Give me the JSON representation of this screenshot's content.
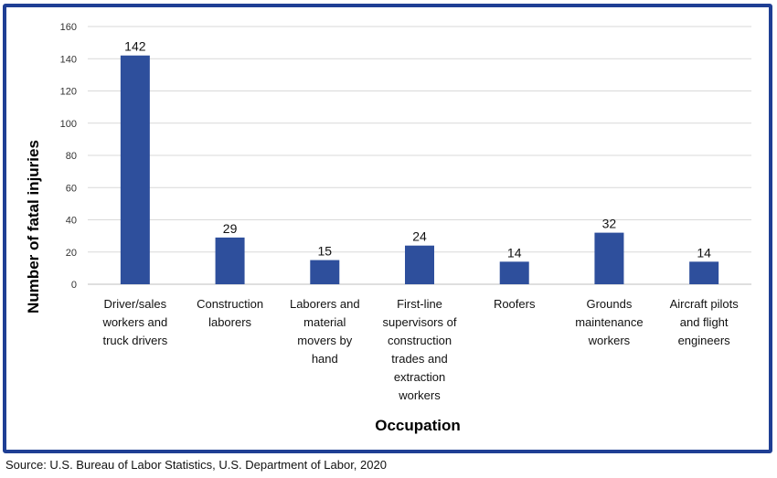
{
  "chart_data": {
    "type": "bar",
    "categories": [
      [
        "Driver/sales",
        "workers and",
        "truck drivers"
      ],
      [
        "Construction",
        "laborers"
      ],
      [
        "Laborers and",
        "material",
        "movers by",
        "hand"
      ],
      [
        "First-line",
        "supervisors of",
        "construction",
        "trades and",
        "extraction",
        "workers"
      ],
      [
        "Roofers"
      ],
      [
        "Grounds",
        "maintenance",
        "workers"
      ],
      [
        "Aircraft pilots",
        "and flight",
        "engineers"
      ]
    ],
    "values": [
      142,
      29,
      15,
      24,
      14,
      32,
      14
    ],
    "data_labels": [
      "142",
      "29",
      "15",
      "24",
      "14",
      "32",
      "14"
    ],
    "xlabel": "Occupation",
    "ylabel": "Number of fatal injuries",
    "ylim": [
      0,
      160
    ],
    "yticks": [
      0,
      20,
      40,
      60,
      80,
      100,
      120,
      140,
      160
    ],
    "grid": true,
    "bar_color": "#2e4f9c",
    "grid_color": "#d9d9d9"
  },
  "source": "Source: U.S. Bureau of Labor Statistics, U.S. Department of Labor, 2020",
  "frame_color": "#1f3f94"
}
